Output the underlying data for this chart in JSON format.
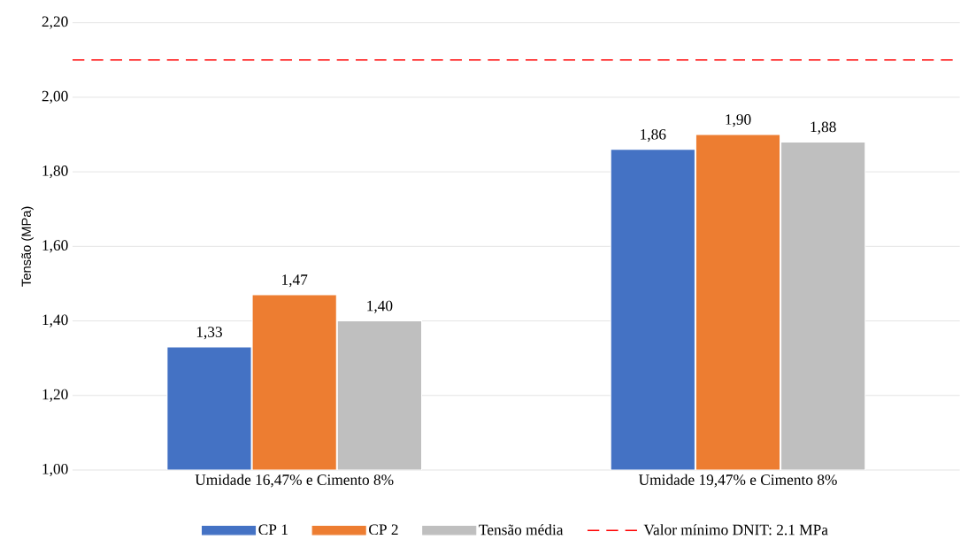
{
  "chart_data": {
    "type": "bar",
    "ylabel": "Tensão (MPa)",
    "categories": [
      "Umidade 16,47% e Cimento 8%",
      "Umidade 19,47% e Cimento 8%"
    ],
    "series": [
      {
        "name": "CP 1",
        "color": "#4472c4",
        "values": [
          1.33,
          1.86
        ],
        "value_labels": [
          "1,33",
          "1,86"
        ]
      },
      {
        "name": "CP 2",
        "color": "#ed7d31",
        "values": [
          1.47,
          1.9
        ],
        "value_labels": [
          "1,47",
          "1,90"
        ]
      },
      {
        "name": "Tensão média",
        "color": "#bfbfbf",
        "values": [
          1.4,
          1.88
        ],
        "value_labels": [
          "1,40",
          "1,88"
        ]
      }
    ],
    "ylim": [
      1.0,
      2.2
    ],
    "yticks": [
      {
        "value": 1.0,
        "label": "1,00"
      },
      {
        "value": 1.2,
        "label": "1,20"
      },
      {
        "value": 1.4,
        "label": "1,40"
      },
      {
        "value": 1.6,
        "label": "1,60"
      },
      {
        "value": 1.8,
        "label": "1,80"
      },
      {
        "value": 2.0,
        "label": "2,00"
      },
      {
        "value": 2.2,
        "label": "2,20"
      }
    ],
    "ref_lines": [
      {
        "axis": "y",
        "value": 2.1,
        "label": "Valor mínimo DNIT: 2.1 MPa",
        "color": "#ff0000",
        "line_style": "dashed"
      }
    ],
    "grid": "y",
    "legend": "bottom"
  }
}
